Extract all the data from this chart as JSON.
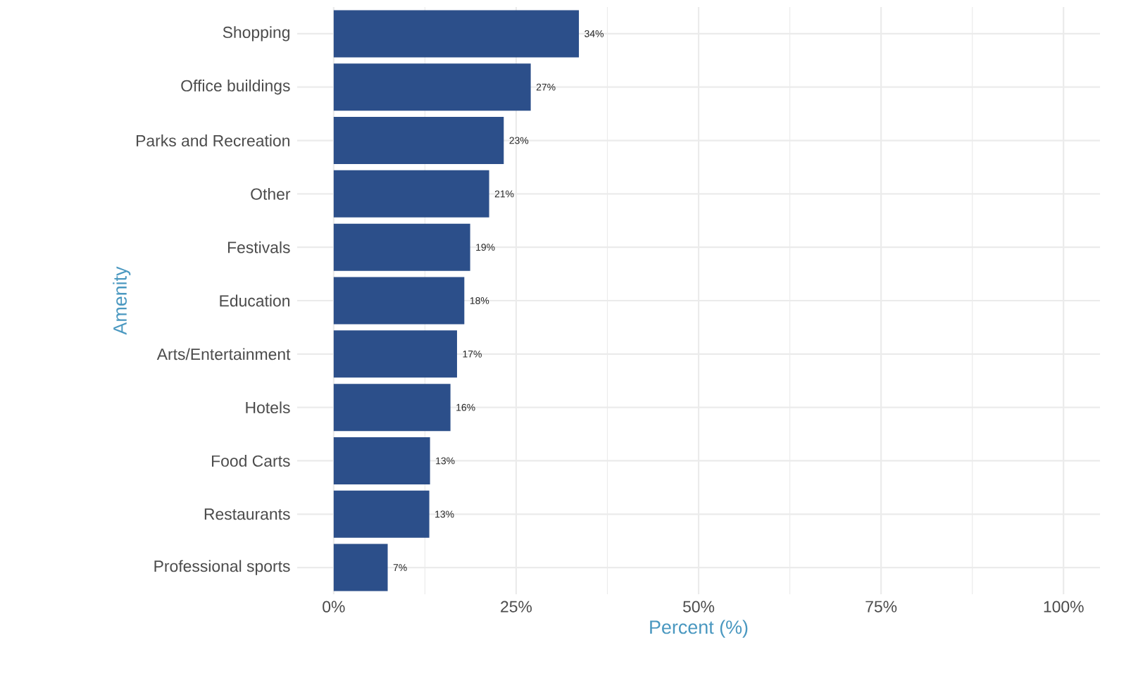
{
  "chart_data": {
    "type": "bar",
    "orientation": "horizontal",
    "xlabel": "Percent (%)",
    "ylabel": "Amenity",
    "categories": [
      "Shopping",
      "Office buildings",
      "Parks and Recreation",
      "Other",
      "Festivals",
      "Education",
      "Arts/Entertainment",
      "Hotels",
      "Food Carts",
      "Restaurants",
      "Professional sports"
    ],
    "values": [
      33.6,
      27.0,
      23.3,
      21.3,
      18.7,
      17.9,
      16.9,
      16.0,
      13.2,
      13.1,
      7.4
    ],
    "value_labels": [
      "34%",
      "27%",
      "23%",
      "21%",
      "19%",
      "18%",
      "17%",
      "16%",
      "13%",
      "13%",
      "7%"
    ],
    "color": "#2c4f8a",
    "xlim": [
      -5,
      105
    ],
    "xticks": [
      {
        "value": 0,
        "label": "0%"
      },
      {
        "value": 25,
        "label": "25%"
      },
      {
        "value": 50,
        "label": "50%"
      },
      {
        "value": 75,
        "label": "75%"
      },
      {
        "value": 100,
        "label": "100%"
      }
    ],
    "grid": true
  }
}
